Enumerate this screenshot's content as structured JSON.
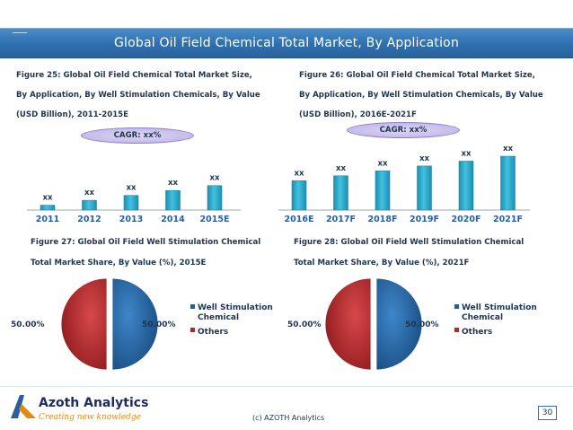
{
  "page_title": "Global Oil Field Chemical Total Market, By Application",
  "figures": {
    "fig25": {
      "caption_lines": [
        "Figure 25: Global Oil Field Chemical Total Market Size,",
        "By Application, By Well Stimulation Chemicals, By Value",
        "(USD Billion), 2011-2015E"
      ],
      "cagr": "CAGR: xx%"
    },
    "fig26": {
      "caption_lines": [
        "Figure 26: Global Oil Field Chemical Total Market Size,",
        "By Application, By Well Stimulation Chemicals, By Value",
        "(USD Billion), 2016E-2021F"
      ],
      "cagr": "CAGR: xx%"
    },
    "fig27": {
      "caption_lines": [
        "Figure 27: Global Oil Field Well Stimulation Chemical",
        "Total Market Share, By Value (%), 2015E"
      ]
    },
    "fig28": {
      "caption_lines": [
        "Figure 28: Global Oil Field Well Stimulation Chemical",
        "Total Market Share, By Value (%), 2021F"
      ]
    }
  },
  "chart_data": [
    {
      "id": "fig25",
      "type": "bar",
      "title": "Figure 25: Global Oil Field Chemical Total Market Size, By Application, By Well Stimulation Chemicals, By Value (USD Billion), 2011-2015E",
      "categories": [
        "2011",
        "2012",
        "2013",
        "2014",
        "2015E"
      ],
      "values": [
        1,
        2,
        3,
        4,
        5
      ],
      "data_labels": [
        "xx",
        "xx",
        "xx",
        "xx",
        "xx"
      ],
      "xlabel": "",
      "ylabel": "",
      "ylim": [
        0,
        11
      ],
      "grid": false,
      "color": "#2aa7c9"
    },
    {
      "id": "fig26",
      "type": "bar",
      "title": "Figure 26: Global Oil Field Chemical Total Market Size, By Application, By Well Stimulation Chemicals, By Value (USD Billion), 2016E-2021F",
      "categories": [
        "2016E",
        "2017F",
        "2018F",
        "2019F",
        "2020F",
        "2021F"
      ],
      "values": [
        6,
        7,
        8,
        9,
        10,
        11
      ],
      "data_labels": [
        "xx",
        "xx",
        "xx",
        "xx",
        "xx",
        "xx"
      ],
      "xlabel": "",
      "ylabel": "",
      "ylim": [
        0,
        11
      ],
      "grid": false,
      "color": "#2aa7c9"
    },
    {
      "id": "fig27",
      "type": "pie",
      "title": "Figure 27: Global Oil Field Well Stimulation Chemical Total Market Share, By Value (%), 2015E",
      "labels": [
        "Well Stimulation Chemical",
        "Others"
      ],
      "values": [
        50,
        50
      ],
      "data_labels": [
        "50.00%",
        "50.00%"
      ],
      "colors": [
        "#1f5f9e",
        "#b3262a"
      ],
      "legend": "right"
    },
    {
      "id": "fig28",
      "type": "pie",
      "title": "Figure 28: Global Oil Field Well Stimulation Chemical Total Market Share, By Value (%), 2021F",
      "labels": [
        "Well Stimulation Chemical",
        "Others"
      ],
      "values": [
        50,
        50
      ],
      "data_labels": [
        "50.00%",
        "50.00%"
      ],
      "colors": [
        "#1f5f9e",
        "#b3262a"
      ],
      "legend": "right"
    }
  ],
  "footer": {
    "brand_name": "Azoth Analytics",
    "brand_tagline": "Creating new knowledge",
    "copyright": "(c) AZOTH Analytics",
    "page_number": "30"
  },
  "colors": {
    "title_bar": "#2f6fae",
    "bar": "#2aa7c9",
    "slice_blue": "#1f5f9e",
    "slice_red": "#b3262a",
    "brand_orange": "#e08a12"
  }
}
